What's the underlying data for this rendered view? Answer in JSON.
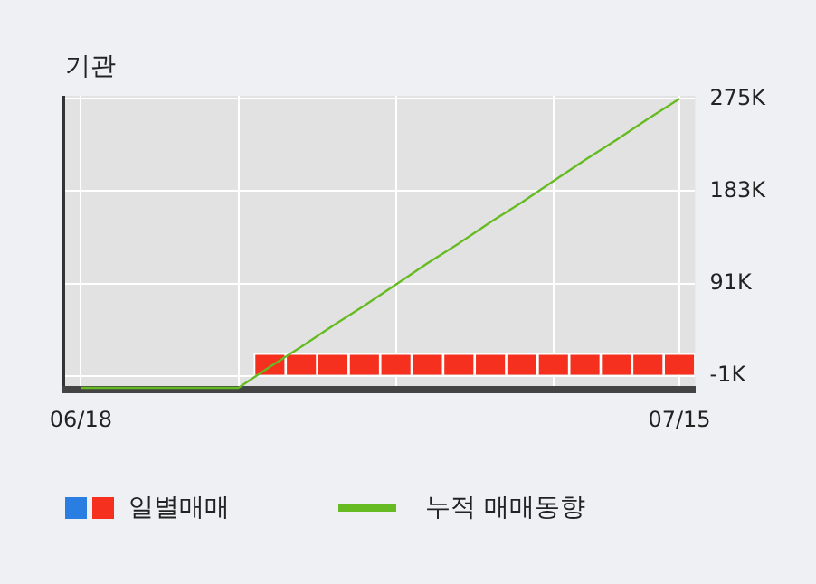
{
  "chart_data": {
    "type": "bar",
    "title": "기관",
    "categories": [
      "06/18",
      null,
      null,
      null,
      null,
      null,
      null,
      null,
      null,
      null,
      null,
      null,
      null,
      null,
      null,
      null,
      null,
      null,
      null,
      "07/15"
    ],
    "series": [
      {
        "name": "일별매매",
        "color": "#f5301e",
        "values": [
          null,
          null,
          null,
          null,
          null,
          null,
          21000,
          21000,
          21000,
          21000,
          21000,
          21000,
          21000,
          21000,
          21000,
          21000,
          21000,
          21000,
          21000,
          21000
        ]
      },
      {
        "name": "누적 매매동향",
        "type": "line",
        "color": "#66bb22",
        "values": [
          -13000,
          -13000,
          -13000,
          -13000,
          -13000,
          -13000,
          8000,
          28000,
          49000,
          69000,
          90000,
          111000,
          131000,
          152000,
          172000,
          193000,
          214000,
          234000,
          255000,
          275000
        ]
      }
    ],
    "ylim": [
      -15000,
      278000
    ],
    "yticks": [
      {
        "value": -1000,
        "label": "-1K"
      },
      {
        "value": 91000,
        "label": "91K"
      },
      {
        "value": 183000,
        "label": "183K"
      },
      {
        "value": 275000,
        "label": "275K"
      }
    ],
    "grid": true,
    "legend": "bottom",
    "marker": "none"
  }
}
